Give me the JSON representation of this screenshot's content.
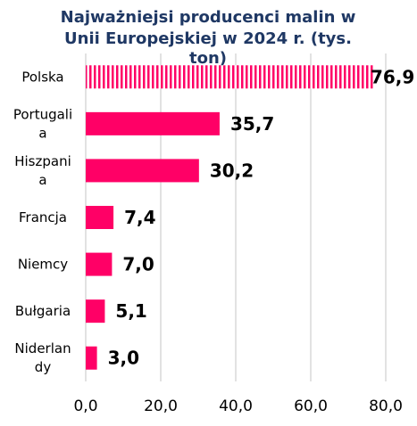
{
  "chart_data": {
    "type": "bar",
    "orientation": "horizontal",
    "title_lines": [
      "Najważniejsi producenci malin w",
      "Unii Europejskiej w 2024 r. (tys.",
      "ton)"
    ],
    "categories": [
      [
        "Polska"
      ],
      [
        "Portugali",
        "a"
      ],
      [
        "Hiszpani",
        "a"
      ],
      [
        "Francja"
      ],
      [
        "Niemcy"
      ],
      [
        "Bułgaria"
      ],
      [
        "Niderlan",
        "dy"
      ]
    ],
    "values": [
      76.9,
      35.7,
      30.2,
      7.4,
      7.0,
      5.1,
      3.0
    ],
    "value_labels": [
      "76,9",
      "35,7",
      "30,2",
      "7,4",
      "7,0",
      "5,1",
      "3,0"
    ],
    "xlim": [
      0,
      80
    ],
    "x_ticks": [
      0,
      20,
      40,
      60,
      80
    ],
    "x_tick_labels": [
      "0,0",
      "20,0",
      "40,0",
      "60,0",
      "80,0"
    ],
    "highlight_index": 0,
    "colors": {
      "bar": "#ff0066",
      "highlight_pattern": "vertical-stripes",
      "grid": "#d9d9d9",
      "title": "#1f3864"
    },
    "grid": true
  }
}
